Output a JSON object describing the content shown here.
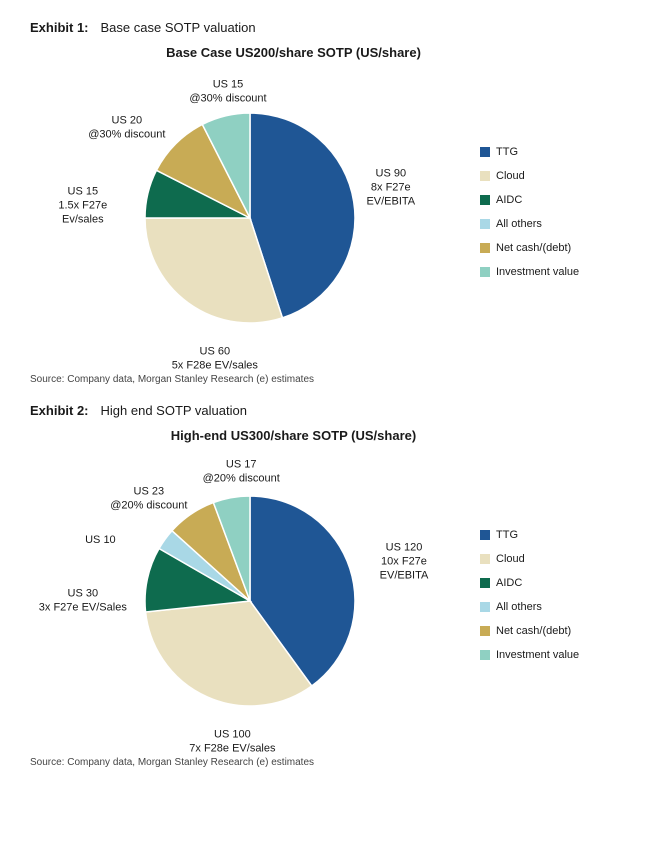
{
  "exhibits": [
    {
      "exhibit_num": "Exhibit 1:",
      "exhibit_title": "Base case SOTP valuation",
      "chart_title": "Base Case US200/share SOTP (US/share)",
      "source": "Source: Company data, Morgan Stanley Research (e) estimates",
      "type": "pie",
      "pie_radius": 105,
      "background_color": "#ffffff",
      "slices": [
        {
          "name": "TTG",
          "value": 90,
          "color": "#1f5695",
          "label_lines": [
            "US 90",
            "8x F27e",
            "EV/EBITA"
          ],
          "label_pos_pct": [
            82,
            40
          ]
        },
        {
          "name": "Cloud",
          "value": 60,
          "color": "#e9e0bf",
          "label_lines": [
            "US 60",
            "5x F28e EV/sales"
          ],
          "label_pos_pct": [
            42,
            97
          ]
        },
        {
          "name": "AIDC",
          "value": 15,
          "color": "#0e6b4e",
          "label_lines": [
            "US 15",
            "1.5x F27e",
            "Ev/sales"
          ],
          "label_pos_pct": [
            12,
            46
          ]
        },
        {
          "name": "All others",
          "value": 0,
          "color": "#a9d8e6",
          "label_lines": [],
          "label_pos_pct": [
            0,
            0
          ]
        },
        {
          "name": "Net cash/(debt)",
          "value": 20,
          "color": "#c8ab55",
          "label_lines": [
            "US 20",
            "@30% discount"
          ],
          "label_pos_pct": [
            22,
            20
          ]
        },
        {
          "name": "Investment value",
          "value": 15,
          "color": "#8fd0c2",
          "label_lines": [
            "US 15",
            "@30% discount"
          ],
          "label_pos_pct": [
            45,
            8
          ]
        }
      ],
      "legend": [
        {
          "label": "TTG",
          "color": "#1f5695"
        },
        {
          "label": "Cloud",
          "color": "#e9e0bf"
        },
        {
          "label": "AIDC",
          "color": "#0e6b4e"
        },
        {
          "label": "All others",
          "color": "#a9d8e6"
        },
        {
          "label": "Net cash/(debt)",
          "color": "#c8ab55"
        },
        {
          "label": "Investment value",
          "color": "#8fd0c2"
        }
      ]
    },
    {
      "exhibit_num": "Exhibit 2:",
      "exhibit_title": "High end SOTP valuation",
      "chart_title": "High-end US300/share SOTP (US/share)",
      "source": "Source: Company data, Morgan Stanley Research (e) estimates",
      "type": "pie",
      "pie_radius": 105,
      "background_color": "#ffffff",
      "slices": [
        {
          "name": "TTG",
          "value": 120,
          "color": "#1f5695",
          "label_lines": [
            "US 120",
            "10x F27e",
            "EV/EBITA"
          ],
          "label_pos_pct": [
            85,
            37
          ]
        },
        {
          "name": "Cloud",
          "value": 100,
          "color": "#e9e0bf",
          "label_lines": [
            "US 100",
            "7x F28e EV/sales"
          ],
          "label_pos_pct": [
            46,
            97
          ]
        },
        {
          "name": "AIDC",
          "value": 30,
          "color": "#0e6b4e",
          "label_lines": [
            "US 30",
            "3x F27e EV/Sales"
          ],
          "label_pos_pct": [
            12,
            50
          ]
        },
        {
          "name": "All others",
          "value": 10,
          "color": "#a9d8e6",
          "label_lines": [
            "US 10"
          ],
          "label_pos_pct": [
            16,
            30
          ]
        },
        {
          "name": "Net cash/(debt)",
          "value": 23,
          "color": "#c8ab55",
          "label_lines": [
            "US 23",
            "@20% discount"
          ],
          "label_pos_pct": [
            27,
            16
          ]
        },
        {
          "name": "Investment value",
          "value": 17,
          "color": "#8fd0c2",
          "label_lines": [
            "US 17",
            "@20% discount"
          ],
          "label_pos_pct": [
            48,
            7
          ]
        }
      ],
      "legend": [
        {
          "label": "TTG",
          "color": "#1f5695"
        },
        {
          "label": "Cloud",
          "color": "#e9e0bf"
        },
        {
          "label": "AIDC",
          "color": "#0e6b4e"
        },
        {
          "label": "All others",
          "color": "#a9d8e6"
        },
        {
          "label": "Net cash/(debt)",
          "color": "#c8ab55"
        },
        {
          "label": "Investment value",
          "color": "#8fd0c2"
        }
      ]
    }
  ]
}
